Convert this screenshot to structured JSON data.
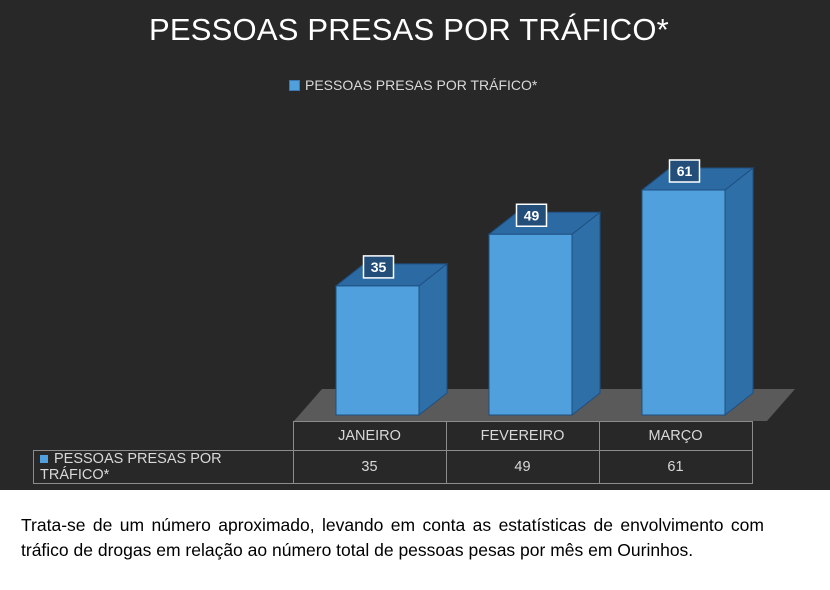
{
  "chart_data": {
    "type": "bar",
    "title": "PESSOAS PRESAS POR TRÁFICO*",
    "categories": [
      "JANEIRO",
      "FEVEREIRO",
      "MARÇO"
    ],
    "series": [
      {
        "name": "PESSOAS PRESAS POR TRÁFICO*",
        "values": [
          35,
          49,
          61
        ],
        "color": "#4fa0dc"
      }
    ],
    "ylim": [
      0,
      70
    ],
    "grid": false,
    "legend_position": "top",
    "data_table": true,
    "style": "3d-columns",
    "background": "#282828"
  },
  "caption": "Trata-se de um número aproximado, levando em conta as estatísticas de envolvimento com tráfico de drogas em relação ao número total de pessoas pesas por mês em Ourinhos."
}
